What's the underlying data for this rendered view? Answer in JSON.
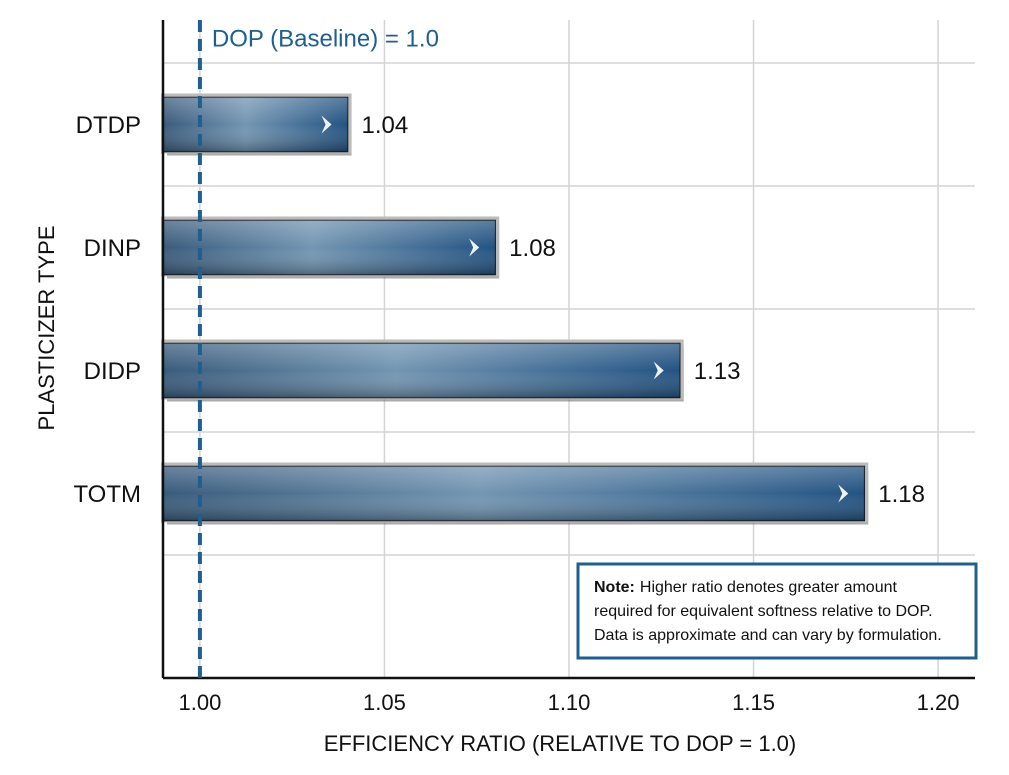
{
  "chart_data": {
    "type": "bar",
    "orientation": "horizontal",
    "categories": [
      "DTDP",
      "DINP",
      "DIDP",
      "TOTM"
    ],
    "values": [
      1.04,
      1.08,
      1.13,
      1.18
    ],
    "color": "#2f5f8a",
    "xlim": [
      0.99,
      1.21
    ],
    "xticks": [
      {
        "value": 1.0,
        "label": "1.00"
      },
      {
        "value": 1.05,
        "label": "1.05"
      },
      {
        "value": 1.1,
        "label": "1.10"
      },
      {
        "value": 1.15,
        "label": "1.15"
      },
      {
        "value": 1.2,
        "label": "1.20"
      }
    ],
    "grid": true,
    "xlabel": "EFFICIENCY RATIO (RELATIVE TO DOP = 1.0)",
    "ylabel": "PLASTICIZER TYPE",
    "baseline": {
      "value": 1.0,
      "label": "DOP (Baseline) = 1.0",
      "color": "#1f5f8f"
    },
    "note": {
      "label": "Note:",
      "lines": [
        "Higher ratio denotes greater amount",
        "required for equivalent softness relative to DOP.",
        "Data is approximate and can vary by formulation."
      ]
    }
  }
}
